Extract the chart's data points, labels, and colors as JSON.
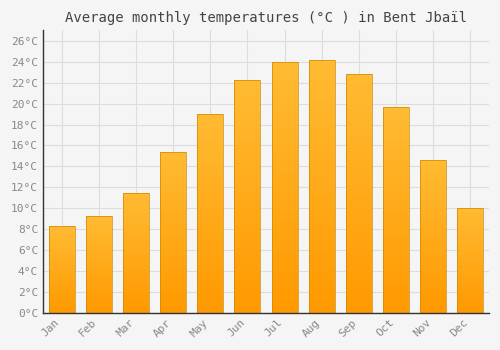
{
  "title": "Average monthly temperatures (°C ) in Bent Jbaïl",
  "months": [
    "Jan",
    "Feb",
    "Mar",
    "Apr",
    "May",
    "Jun",
    "Jul",
    "Aug",
    "Sep",
    "Oct",
    "Nov",
    "Dec"
  ],
  "values": [
    8.3,
    9.2,
    11.4,
    15.4,
    19.0,
    22.3,
    24.0,
    24.2,
    22.8,
    19.7,
    14.6,
    10.0
  ],
  "bar_color_top": "#FFBB33",
  "bar_color_bottom": "#FF9900",
  "bar_edge_color": "#CC8800",
  "background_color": "#F5F5F5",
  "plot_bg_color": "#F5F5F5",
  "grid_color": "#DDDDDD",
  "tick_label_color": "#888888",
  "title_color": "#444444",
  "axis_color": "#333333",
  "ylim": [
    0,
    27
  ],
  "yticks": [
    0,
    2,
    4,
    6,
    8,
    10,
    12,
    14,
    16,
    18,
    20,
    22,
    24,
    26
  ],
  "ytick_labels": [
    "0°C",
    "2°C",
    "4°C",
    "6°C",
    "8°C",
    "10°C",
    "12°C",
    "14°C",
    "16°C",
    "18°C",
    "20°C",
    "22°C",
    "24°C",
    "26°C"
  ],
  "title_fontsize": 10,
  "tick_fontsize": 8,
  "bar_width": 0.7,
  "figsize": [
    5.0,
    3.5
  ],
  "dpi": 100
}
